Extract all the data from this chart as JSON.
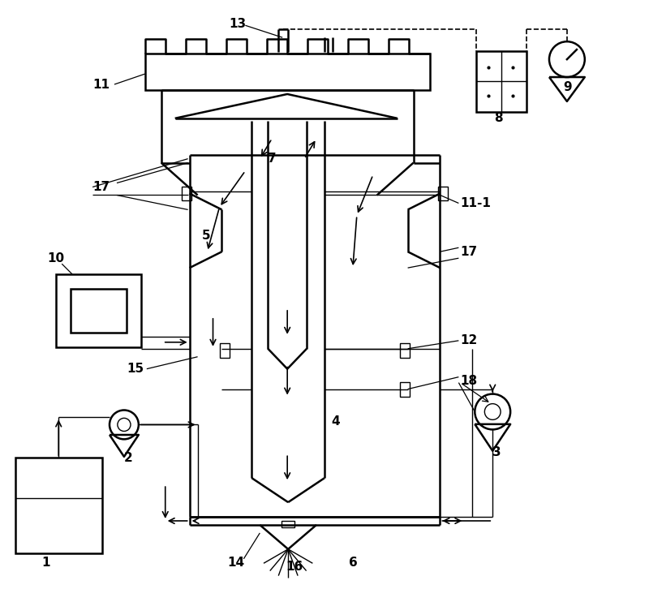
{
  "background": "#ffffff",
  "line_color": "#000000",
  "lw_main": 1.8,
  "lw_thin": 1.0,
  "label_fs": 11
}
